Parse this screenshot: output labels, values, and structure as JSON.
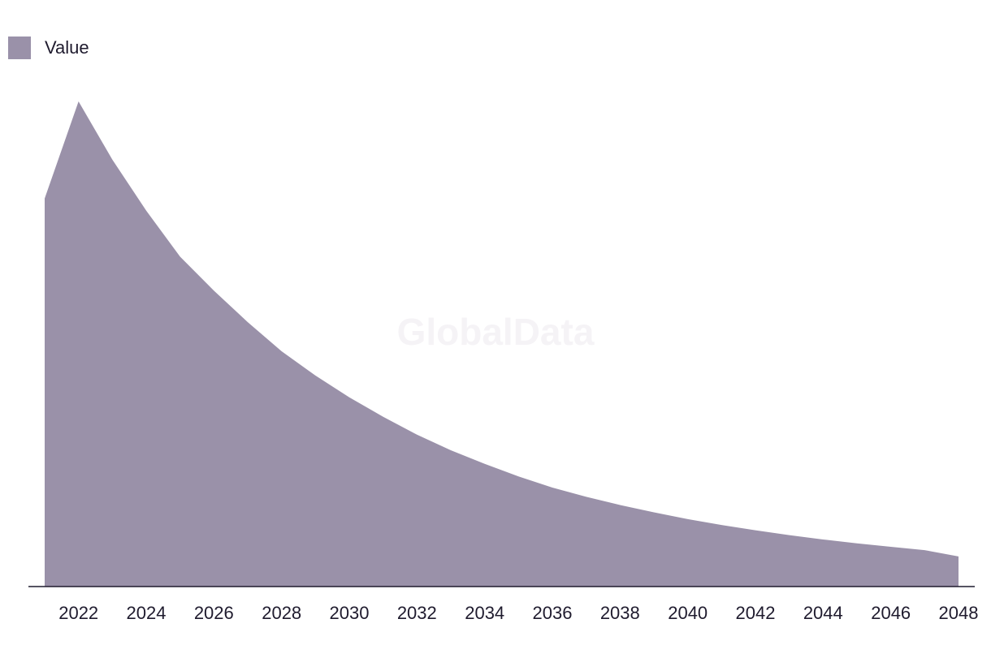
{
  "chart_data": {
    "type": "area",
    "title": "",
    "xlabel": "",
    "ylabel": "",
    "x": [
      2021,
      2022,
      2023,
      2024,
      2025,
      2026,
      2027,
      2028,
      2029,
      2030,
      2031,
      2032,
      2033,
      2034,
      2035,
      2036,
      2037,
      2038,
      2039,
      2040,
      2041,
      2042,
      2043,
      2044,
      2045,
      2046,
      2047,
      2048
    ],
    "x_ticks": [
      "2022",
      "2024",
      "2026",
      "2028",
      "2030",
      "2032",
      "2034",
      "2036",
      "2038",
      "2040",
      "2042",
      "2044",
      "2046",
      "2048"
    ],
    "series": [
      {
        "name": "Value",
        "color": "#9a91a9",
        "values": [
          80,
          100,
          88,
          77.5,
          68,
          61,
          54.5,
          48.5,
          43.5,
          39,
          35,
          31.3,
          28.1,
          25.3,
          22.7,
          20.4,
          18.5,
          16.8,
          15.3,
          13.9,
          12.7,
          11.6,
          10.6,
          9.7,
          8.9,
          8.2,
          7.5,
          6.2
        ]
      }
    ],
    "ylim": [
      0,
      100
    ],
    "grid": false,
    "legend_position": "top-left",
    "watermark": "GlobalData"
  },
  "legend": {
    "label": "Value"
  }
}
